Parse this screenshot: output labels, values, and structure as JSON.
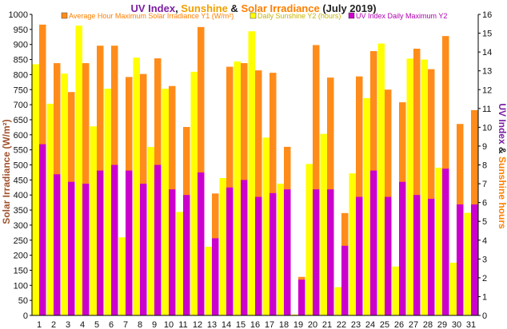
{
  "chart_data": {
    "type": "bar",
    "title": {
      "part1": "UV Index",
      "sep1": ", ",
      "part2": "Sunshine",
      "sep2": " & ",
      "part3": "Solar Irradiance",
      "part4": " (July 2019)"
    },
    "ylabel": "Solar Irradiance (W/m²)",
    "y2label": {
      "part1": "UV Index",
      "sep": " & ",
      "part2": "Sunshine hours"
    },
    "categories": [
      "1",
      "2",
      "3",
      "4",
      "5",
      "6",
      "7",
      "8",
      "9",
      "10",
      "11",
      "12",
      "13",
      "14",
      "15",
      "16",
      "17",
      "18",
      "19",
      "20",
      "21",
      "22",
      "23",
      "24",
      "25",
      "26",
      "27",
      "28",
      "29",
      "30",
      "31"
    ],
    "ylim": [
      0,
      1000
    ],
    "y2lim": [
      0,
      16
    ],
    "yticks": [
      "0",
      "50",
      "100",
      "150",
      "200",
      "250",
      "300",
      "350",
      "400",
      "450",
      "500",
      "550",
      "600",
      "650",
      "700",
      "750",
      "800",
      "850",
      "900",
      "950",
      "1000"
    ],
    "y2ticks": [
      "0",
      "1",
      "2",
      "3",
      "4",
      "5",
      "6",
      "7",
      "8",
      "9",
      "10",
      "11",
      "12",
      "13",
      "14",
      "15",
      "16"
    ],
    "grid": false,
    "legend_position": "top",
    "series": [
      {
        "name": "Daily Sunshine Y2 (hours)",
        "axis": "right",
        "color": "#ffff00",
        "values": [
          13.35,
          11.25,
          12.85,
          15.4,
          10.05,
          12.05,
          4.15,
          13.7,
          8.95,
          12.05,
          5.5,
          12.95,
          3.65,
          7.3,
          13.5,
          15.1,
          9.45,
          7.0,
          0.05,
          8.05,
          9.65,
          1.5,
          7.55,
          11.55,
          14.45,
          2.6,
          13.65,
          13.6,
          7.85,
          2.8,
          5.45
        ]
      },
      {
        "name": "Average Hour Maximum Solar Irradiance Y1 (W/m²)",
        "axis": "left",
        "color": "#ff8c1a",
        "values": [
          966,
          838,
          742,
          838,
          896,
          896,
          792,
          802,
          854,
          762,
          626,
          958,
          405,
          826,
          838,
          814,
          806,
          560,
          128,
          898,
          790,
          340,
          794,
          878,
          750,
          708,
          886,
          818,
          928,
          636,
          682
        ]
      },
      {
        "name": "UV Index Daily Maximum Y2",
        "axis": "right",
        "color": "#cc00cc",
        "values": [
          9.1,
          7.5,
          7.1,
          7.0,
          7.7,
          8.0,
          7.7,
          7.0,
          8.0,
          6.7,
          6.4,
          7.6,
          4.1,
          6.8,
          7.2,
          6.3,
          6.5,
          6.7,
          1.9,
          6.7,
          6.7,
          3.7,
          6.3,
          7.7,
          6.3,
          7.1,
          6.4,
          6.2,
          7.8,
          5.9,
          5.9
        ]
      }
    ]
  }
}
